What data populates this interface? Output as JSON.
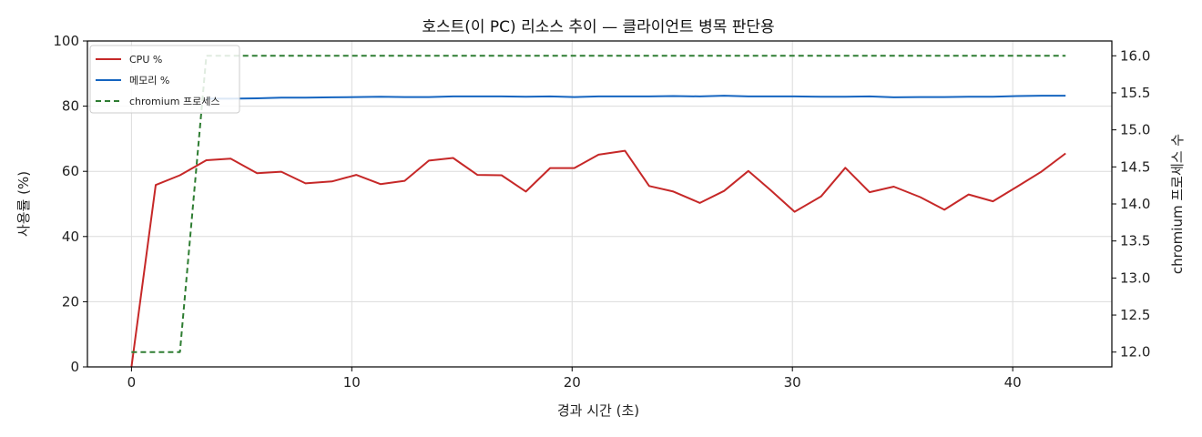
{
  "chart_data": {
    "type": "line",
    "title": "호스트(이 PC) 리소스 추이 — 클라이언트 병목 판단용",
    "xlabel": "경과 시간 (초)",
    "ylabel": "사용률 (%)",
    "ylabel_right": "chromium 프로세스 수",
    "xlim": [
      -2,
      44.5
    ],
    "ylim": [
      0,
      100
    ],
    "ylim_right": [
      11.8,
      16.2
    ],
    "x_ticks": [
      0,
      10,
      20,
      30,
      40
    ],
    "y_ticks": [
      0,
      20,
      40,
      60,
      80,
      100
    ],
    "y_ticks_right": [
      "12.0",
      "12.5",
      "13.0",
      "13.5",
      "14.0",
      "14.5",
      "15.0",
      "15.5",
      "16.0"
    ],
    "grid": true,
    "legend_position": "top-left",
    "x": [
      0,
      1.1,
      2.2,
      3.4,
      4.5,
      5.7,
      6.8,
      7.9,
      9.1,
      10.2,
      11.3,
      12.4,
      13.5,
      14.6,
      15.7,
      16.8,
      17.9,
      19.0,
      20.1,
      21.2,
      22.4,
      23.5,
      24.6,
      25.8,
      26.9,
      28.0,
      29.0,
      30.1,
      31.3,
      32.4,
      33.5,
      34.6,
      35.8,
      36.9,
      38.0,
      39.1,
      40.2,
      41.3,
      42.4
    ],
    "series": [
      {
        "name": "CPU %",
        "axis": "left",
        "color": "#c62828",
        "style": "solid",
        "values": [
          0,
          55.8,
          58.8,
          63.4,
          63.9,
          59.4,
          59.9,
          56.3,
          56.9,
          58.9,
          56.1,
          57.1,
          63.3,
          64.1,
          58.9,
          58.8,
          53.8,
          61.0,
          61.0,
          65.1,
          66.3,
          55.5,
          53.8,
          50.3,
          54.0,
          60.1,
          54.3,
          47.6,
          52.3,
          61.1,
          53.6,
          55.3,
          52.1,
          48.2,
          52.9,
          50.8,
          55.3,
          59.9,
          65.5
        ]
      },
      {
        "name": "메모리 %",
        "axis": "left",
        "color": "#1565c0",
        "style": "solid",
        "values": [
          null,
          null,
          null,
          82.3,
          82.3,
          82.4,
          82.6,
          82.6,
          82.7,
          82.8,
          82.9,
          82.8,
          82.8,
          83.0,
          83.0,
          83.0,
          82.9,
          83.0,
          82.8,
          83.0,
          83.0,
          83.0,
          83.1,
          83.0,
          83.2,
          83.0,
          83.0,
          83.0,
          82.9,
          82.9,
          83.0,
          82.7,
          82.8,
          82.8,
          82.9,
          82.9,
          83.1,
          83.2,
          83.2
        ]
      },
      {
        "name": "chromium 프로세스",
        "axis": "right",
        "color": "#2e7d32",
        "style": "dashed",
        "values": [
          12,
          12,
          12,
          16,
          16,
          16,
          16,
          16,
          16,
          16,
          16,
          16,
          16,
          16,
          16,
          16,
          16,
          16,
          16,
          16,
          16,
          16,
          16,
          16,
          16,
          16,
          16,
          16,
          16,
          16,
          16,
          16,
          16,
          16,
          16,
          16,
          16,
          16,
          16
        ]
      }
    ]
  }
}
